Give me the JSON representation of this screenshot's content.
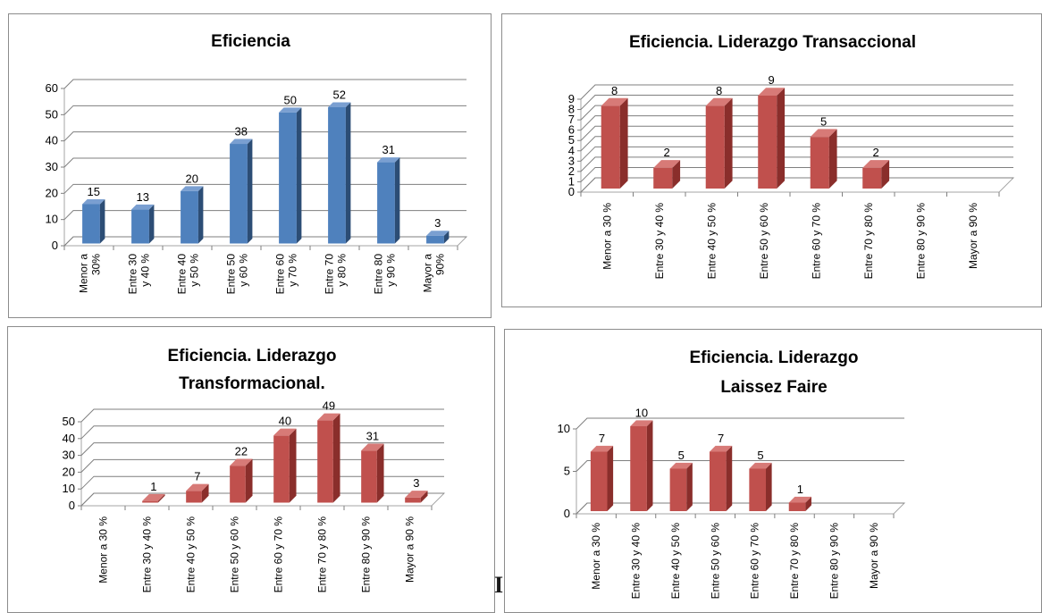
{
  "stray_text": "I",
  "chart_data": [
    {
      "type": "bar",
      "title": "Eficiencia",
      "xlabel": "",
      "ylabel": "",
      "categories": [
        "Menor a 30%",
        "Entre 30 y 40 %",
        "Entre 40 y 50 %",
        "Entre 50 y 60 %",
        "Entre 60 y 70 %",
        "Entre 70 y 80 %",
        "Entre 80 y 90 %",
        "Mayor a 90%"
      ],
      "category_lines": [
        [
          "Menor a",
          "30%"
        ],
        [
          "Entre 30",
          "y 40 %"
        ],
        [
          "Entre 40",
          "y 50 %"
        ],
        [
          "Entre 50",
          "y 60 %"
        ],
        [
          "Entre 60",
          "y 70 %"
        ],
        [
          "Entre 70",
          "y 80 %"
        ],
        [
          "Entre 80",
          "y 90 %"
        ],
        [
          "Mayor a",
          "90%"
        ]
      ],
      "values": [
        15,
        13,
        20,
        38,
        50,
        52,
        31,
        3
      ],
      "ylim": [
        0,
        60
      ],
      "yticks": [
        0,
        10,
        20,
        30,
        40,
        50,
        60
      ],
      "grid": true,
      "colors": {
        "front": "#4f81bd",
        "side": "#2c4d75",
        "top": "#7a9fd1"
      }
    },
    {
      "type": "bar",
      "title": "Eficiencia. Liderazgo Transaccional",
      "xlabel": "",
      "ylabel": "",
      "categories": [
        "Menor a 30 %",
        "Entre 30 y 40 %",
        "Entre 40 y 50 %",
        "Entre 50 y 60 %",
        "Entre 60 y 70 %",
        "Entre 70 y 80 %",
        "Entre 80 y 90 %",
        "Mayor a 90 %"
      ],
      "values": [
        8,
        2,
        8,
        9,
        5,
        2,
        0,
        0
      ],
      "data_labels": [
        "8",
        "2",
        "8",
        "9",
        "5",
        "2",
        "",
        ""
      ],
      "ylim": [
        0,
        9
      ],
      "yticks": [
        0,
        1,
        2,
        3,
        4,
        5,
        6,
        7,
        8,
        9
      ],
      "grid": true,
      "colors": {
        "front": "#c0504d",
        "side": "#8a2e2b",
        "top": "#d77a77"
      }
    },
    {
      "type": "bar",
      "title": "Eficiencia. Liderazgo Transformacional.",
      "title_lines": [
        "Eficiencia. Liderazgo",
        "Transformacional."
      ],
      "xlabel": "",
      "ylabel": "",
      "categories": [
        "Menor a 30 %",
        "Entre 30 y 40 %",
        "Entre 40 y 50 %",
        "Entre 50 y 60 %",
        "Entre 60 y 70 %",
        "Entre 70 y 80 %",
        "Entre 80 y 90 %",
        "Mayor a 90 %"
      ],
      "values": [
        0,
        1,
        7,
        22,
        40,
        49,
        31,
        3
      ],
      "data_labels": [
        "",
        "1",
        "7",
        "22",
        "40",
        "49",
        "31",
        "3"
      ],
      "ylim": [
        0,
        50
      ],
      "yticks": [
        0,
        10,
        20,
        30,
        40,
        50
      ],
      "grid": true,
      "colors": {
        "front": "#c0504d",
        "side": "#8a2e2b",
        "top": "#d77a77"
      }
    },
    {
      "type": "bar",
      "title": "Eficiencia. Liderazgo Laissez Faire",
      "title_lines": [
        "Eficiencia. Liderazgo",
        "Laissez Faire"
      ],
      "xlabel": "",
      "ylabel": "",
      "categories": [
        "Menor a 30 %",
        "Entre 30 y 40 %",
        "Entre 40 y 50 %",
        "Entre 50 y 60 %",
        "Entre 60 y 70 %",
        "Entre 70 y 80 %",
        "Entre 80 y 90 %",
        "Mayor a 90 %"
      ],
      "values": [
        7,
        10,
        5,
        7,
        5,
        1,
        0,
        0
      ],
      "data_labels": [
        "7",
        "10",
        "5",
        "7",
        "5",
        "1",
        "",
        ""
      ],
      "ylim": [
        0,
        10
      ],
      "yticks": [
        0,
        5,
        10
      ],
      "grid": true,
      "colors": {
        "front": "#c0504d",
        "side": "#8a2e2b",
        "top": "#d77a77"
      }
    }
  ]
}
